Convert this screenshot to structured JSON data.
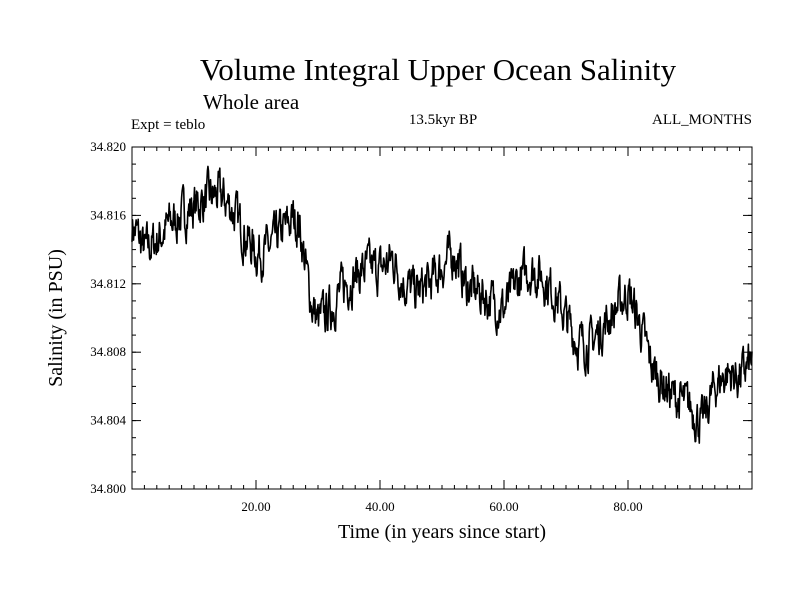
{
  "chart_data": {
    "type": "line",
    "title": "Volume Integral Upper Ocean Salinity",
    "subtitle": "Whole area",
    "experiment_label": "Expt = teblo",
    "period_label": "13.5kyr BP",
    "months_label": "ALL_MONTHS",
    "xlabel": "Time (in years since start)",
    "ylabel": "Salinity (in PSU)",
    "xlim": [
      0,
      100
    ],
    "ylim": [
      34.8,
      34.82
    ],
    "x_ticks": [
      20,
      40,
      60,
      80
    ],
    "x_tick_labels": [
      "20.00",
      "40.00",
      "60.00",
      "80.00"
    ],
    "y_ticks": [
      34.8,
      34.804,
      34.808,
      34.812,
      34.816,
      34.82
    ],
    "y_tick_labels": [
      "34.800",
      "34.804",
      "34.808",
      "34.812",
      "34.816",
      "34.820"
    ],
    "grid": false,
    "series": [
      {
        "name": "salinity",
        "color": "#000000",
        "x": [
          0,
          2,
          4,
          6,
          8,
          10,
          12,
          14,
          16,
          18,
          20,
          22,
          24,
          26,
          27,
          28,
          29,
          30,
          32,
          34,
          36,
          38,
          40,
          42,
          44,
          46,
          48,
          50,
          52,
          54,
          56,
          58,
          60,
          62,
          64,
          66,
          68,
          70,
          72,
          74,
          76,
          78,
          80,
          82,
          84,
          86,
          88,
          90,
          92,
          94,
          96,
          98,
          100
        ],
        "y": [
          34.8155,
          34.814,
          34.8145,
          34.8155,
          34.816,
          34.8165,
          34.817,
          34.8172,
          34.8165,
          34.815,
          34.8138,
          34.814,
          34.815,
          34.8158,
          34.8155,
          34.813,
          34.8108,
          34.8098,
          34.8105,
          34.8118,
          34.8125,
          34.813,
          34.8128,
          34.8135,
          34.812,
          34.8115,
          34.812,
          34.813,
          34.8138,
          34.8118,
          34.8115,
          34.811,
          34.8105,
          34.812,
          34.8128,
          34.8125,
          34.8115,
          34.81,
          34.8085,
          34.8085,
          34.8095,
          34.8105,
          34.8115,
          34.8095,
          34.807,
          34.806,
          34.8052,
          34.8048,
          34.8038,
          34.806,
          34.8068,
          34.8065,
          34.8075
        ]
      }
    ]
  }
}
